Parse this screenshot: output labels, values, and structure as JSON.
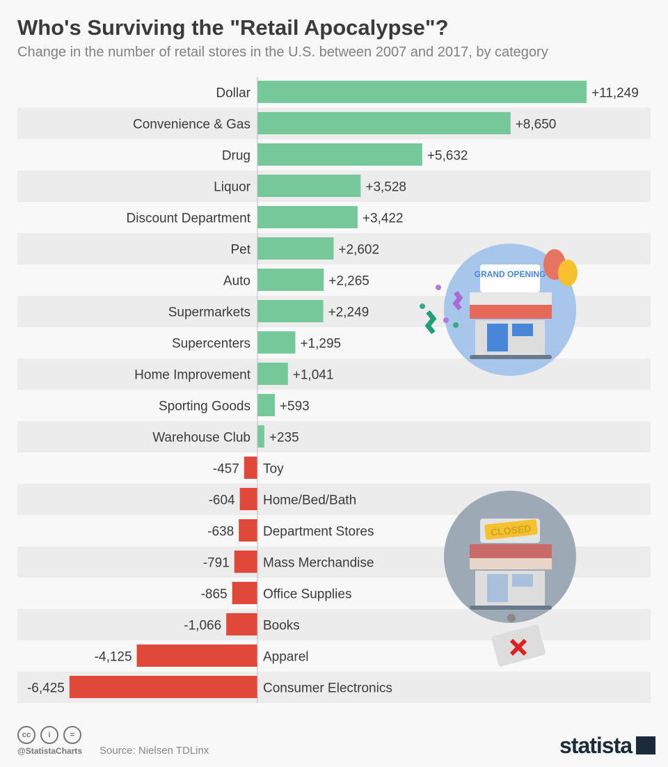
{
  "chart_data": {
    "type": "bar",
    "orientation": "horizontal",
    "title": "Who's Surviving the \"Retail Apocalypse\"?",
    "subtitle": "Change in the number of retail stores in the U.S. between 2007 and 2017, by category",
    "categories": [
      "Dollar",
      "Convenience & Gas",
      "Drug",
      "Liquor",
      "Discount Department",
      "Pet",
      "Auto",
      "Supermarkets",
      "Supercenters",
      "Home Improvement",
      "Sporting Goods",
      "Warehouse Club",
      "Toy",
      "Home/Bed/Bath",
      "Department Stores",
      "Mass Merchandise",
      "Office Supplies",
      "Books",
      "Apparel",
      "Consumer Electronics"
    ],
    "values": [
      11249,
      8650,
      5632,
      3528,
      3422,
      2602,
      2265,
      2249,
      1295,
      1041,
      593,
      235,
      -457,
      -604,
      -638,
      -791,
      -865,
      -1066,
      -4125,
      -6425
    ],
    "value_labels": [
      "+11,249",
      "+8,650",
      "+5,632",
      "+3,528",
      "+3,422",
      "+2,602",
      "+2,265",
      "+2,249",
      "+1,295",
      "+1,041",
      "+593",
      "+235",
      "-457",
      "-604",
      "-638",
      "-791",
      "-865",
      "-1,066",
      "-4,125",
      "-6,425"
    ],
    "xlim": [
      -6425,
      11249
    ],
    "colors": {
      "positive": "#76c799",
      "negative": "#e0483a"
    },
    "grid": false
  },
  "illustrations": {
    "opening_sign": "GRAND OPENING",
    "closed_sign": "CLOSED"
  },
  "footer": {
    "handle": "@StatistaCharts",
    "source": "Source: Nielsen TDLinx",
    "logo": "statista",
    "license_icons": [
      "cc",
      "i",
      "="
    ]
  }
}
